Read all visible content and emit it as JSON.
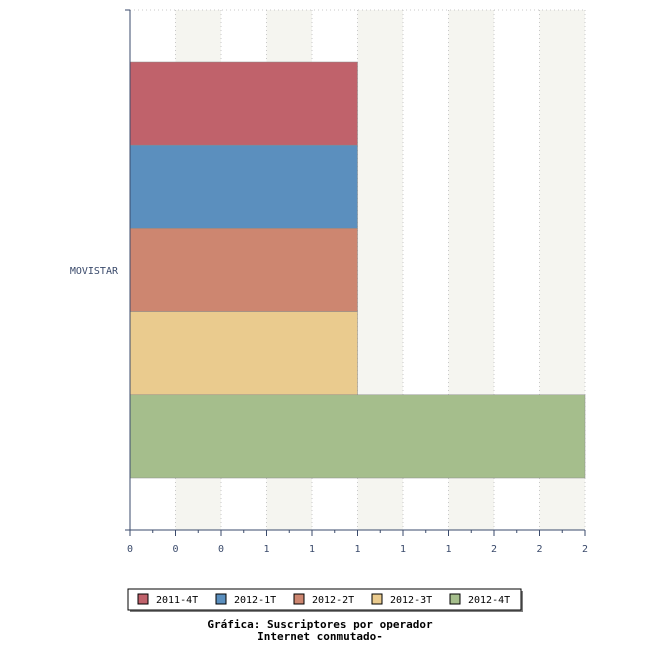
{
  "chart_data": {
    "type": "bar",
    "orientation": "horizontal",
    "title_lines": [
      "Gráfica: Suscriptores por operador",
      "Internet conmutado-"
    ],
    "categories": [
      "MOVISTAR"
    ],
    "series": [
      {
        "name": "2011-4T",
        "values": [
          1
        ],
        "color": "#c0626b"
      },
      {
        "name": "2012-1T",
        "values": [
          1
        ],
        "color": "#5b8fbe"
      },
      {
        "name": "2012-2T",
        "values": [
          1
        ],
        "color": "#cd8670"
      },
      {
        "name": "2012-3T",
        "values": [
          1
        ],
        "color": "#eacb8e"
      },
      {
        "name": "2012-4T",
        "values": [
          2
        ],
        "color": "#a5be8c"
      }
    ],
    "xlim": [
      0,
      2
    ],
    "x_tick_labels": [
      "0",
      "0",
      "0",
      "1",
      "1",
      "1",
      "1",
      "1",
      "2",
      "2",
      "2"
    ],
    "grid": true,
    "legend_position": "bottom"
  }
}
